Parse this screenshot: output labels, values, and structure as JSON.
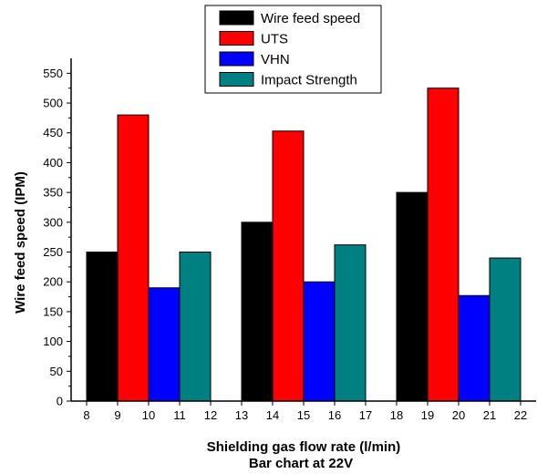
{
  "chart_data": {
    "type": "bar",
    "xlabel": "Shielding gas flow rate (l/min)",
    "subtitle": "Bar chart at 22V",
    "ylabel": "Wire feed speed (IPM)",
    "xlim": [
      7.5,
      22.5
    ],
    "ylim": [
      0,
      575
    ],
    "x_ticks": [
      8,
      9,
      10,
      11,
      12,
      13,
      14,
      15,
      16,
      17,
      18,
      19,
      20,
      21,
      22
    ],
    "y_ticks": [
      0,
      50,
      100,
      150,
      200,
      250,
      300,
      350,
      400,
      450,
      500,
      550
    ],
    "legend_position": "top-center",
    "grid": false,
    "series": [
      {
        "name": "Wire feed speed",
        "color": "#000000",
        "points": [
          {
            "x0": 8,
            "x1": 9,
            "value": 250
          },
          {
            "x0": 13,
            "x1": 14,
            "value": 300
          },
          {
            "x0": 18,
            "x1": 19,
            "value": 350
          }
        ]
      },
      {
        "name": "UTS",
        "color": "#ff0000",
        "points": [
          {
            "x0": 9,
            "x1": 10,
            "value": 480
          },
          {
            "x0": 14,
            "x1": 15,
            "value": 453
          },
          {
            "x0": 19,
            "x1": 20,
            "value": 525
          }
        ]
      },
      {
        "name": "VHN",
        "color": "#0000ff",
        "points": [
          {
            "x0": 10,
            "x1": 11,
            "value": 190
          },
          {
            "x0": 15,
            "x1": 16,
            "value": 200
          },
          {
            "x0": 20,
            "x1": 21,
            "value": 177
          }
        ]
      },
      {
        "name": "Impact Strength",
        "color": "#008080",
        "points": [
          {
            "x0": 11,
            "x1": 12,
            "value": 250
          },
          {
            "x0": 16,
            "x1": 17,
            "value": 262
          },
          {
            "x0": 21,
            "x1": 22,
            "value": 240
          }
        ]
      }
    ]
  }
}
